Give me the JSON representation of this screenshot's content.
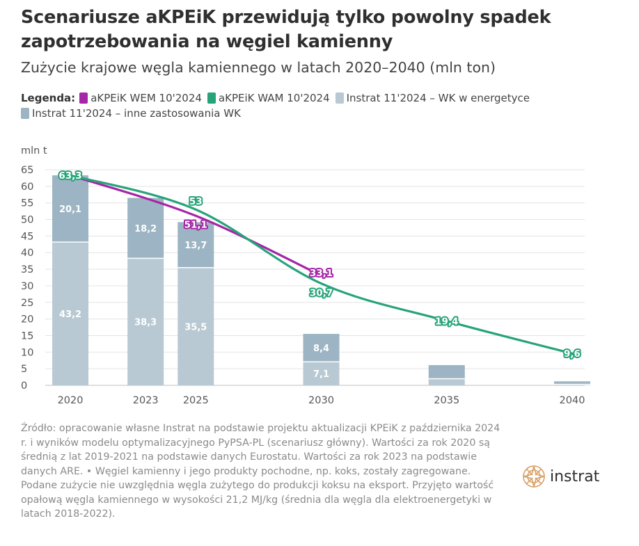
{
  "title": "Scenariusze aKPEiK przewidują tylko powolny spadek zapotrzebowania na węgiel kamienny",
  "subtitle": "Zużycie krajowe węgla kamiennego w latach 2020–2040 (mln ton)",
  "legend": {
    "label": "Legenda:",
    "items": [
      {
        "label": "aKPEiK WEM 10'2024",
        "color": "#a526a6"
      },
      {
        "label": "aKPEiK WAM 10'2024",
        "color": "#27a37a"
      },
      {
        "label": "Instrat 11'2024 – WK w energetyce",
        "color": "#b9c9d3"
      },
      {
        "label": "Instrat 11'2024 – inne zastosowania WK",
        "color": "#9cb4c3"
      }
    ]
  },
  "source": "Źródło: opracowanie własne Instrat na podstawie projektu aktualizacji KPEiK z października 2024 r. i wyników modelu optymalizacyjnego PyPSA-PL (scenariusz główny). Wartości za rok 2020 są średnią z lat 2019-2021 na podstawie danych Eurostatu. Wartości za rok 2023 na podstawie danych ARE. • Węgiel kamienny i jego produkty pochodne, np. koks, zostały zagregowane. Podane zużycie nie uwzględnia węgla zużytego do produkcji koksu na eksport. Przyjęto wartość opałową węgla kamiennego w wysokości 21,2 MJ/kg (średnia dla węgla dla elektroenergetyki w latach 2018-2022).",
  "logo": {
    "text": "instrat",
    "color": "#d9a066",
    "icon": "instrat-compass-logo"
  },
  "chart_data": {
    "type": "bar",
    "ylabel": "mln t",
    "ylim": [
      0,
      65
    ],
    "yticks": [
      0,
      5,
      10,
      15,
      20,
      25,
      30,
      35,
      40,
      45,
      50,
      55,
      60,
      65
    ],
    "x_range": [
      2019,
      2040.5
    ],
    "xticks": [
      2020,
      2023,
      2025,
      2030,
      2035,
      2040
    ],
    "grid": true,
    "stacked_bars": {
      "x": [
        2020,
        2023,
        2025,
        2030,
        2035,
        2040
      ],
      "series": [
        {
          "name": "Instrat 11'2024 – WK w energetyce",
          "color": "#b9c9d3",
          "values": [
            43.2,
            38.3,
            35.5,
            7.1,
            2.0,
            0.3
          ],
          "labels": [
            "43,2",
            "38,3",
            "35,5",
            "7,1",
            "",
            ""
          ]
        },
        {
          "name": "Instrat 11'2024 – inne zastosowania WK",
          "color": "#9cb4c3",
          "values": [
            20.1,
            18.2,
            13.7,
            8.4,
            4.1,
            0.9
          ],
          "labels": [
            "20,1",
            "18,2",
            "13,7",
            "8,4",
            "",
            ""
          ]
        }
      ]
    },
    "lines": [
      {
        "name": "aKPEiK WEM 10'2024",
        "color": "#a526a6",
        "x": [
          2020,
          2025,
          2030
        ],
        "y": [
          63.3,
          51.1,
          33.1
        ],
        "labels": [
          "",
          "51,1",
          "33,1"
        ]
      },
      {
        "name": "aKPEiK WAM 10'2024",
        "color": "#27a37a",
        "x": [
          2020,
          2025,
          2030,
          2035,
          2040
        ],
        "y": [
          63.3,
          53.0,
          30.7,
          19.4,
          9.6
        ],
        "labels": [
          "63,3",
          "53",
          "30,7",
          "19,4",
          "9,6"
        ]
      }
    ]
  }
}
